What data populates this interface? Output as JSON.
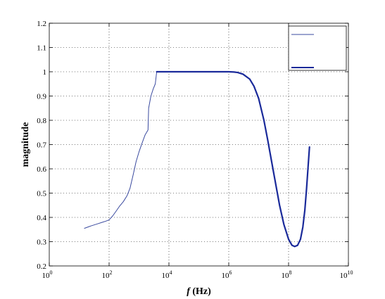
{
  "chart_data": {
    "type": "line",
    "title": "",
    "xlabel_italic": "f",
    "xlabel_rest": " (Hz)",
    "ylabel": "magnitude",
    "xscale": "log",
    "xlim": [
      1,
      10000000000
    ],
    "ylim": [
      0.2,
      1.2
    ],
    "grid": true,
    "legend_placement": "top-right",
    "x_ticks": [
      {
        "value": 1,
        "base": "10",
        "exp": "0"
      },
      {
        "value": 100,
        "base": "10",
        "exp": "2"
      },
      {
        "value": 10000,
        "base": "10",
        "exp": "4"
      },
      {
        "value": 1000000,
        "base": "10",
        "exp": "6"
      },
      {
        "value": 100000000,
        "base": "10",
        "exp": "8"
      },
      {
        "value": 10000000000,
        "base": "10",
        "exp": "10"
      }
    ],
    "y_ticks": [
      {
        "value": 0.2,
        "label": "0.2"
      },
      {
        "value": 0.3,
        "label": "0.3"
      },
      {
        "value": 0.4,
        "label": "0.4"
      },
      {
        "value": 0.5,
        "label": "0.5"
      },
      {
        "value": 0.6,
        "label": "0.6"
      },
      {
        "value": 0.7,
        "label": "0.7"
      },
      {
        "value": 0.8,
        "label": "0.8"
      },
      {
        "value": 0.9,
        "label": "0.9"
      },
      {
        "value": 1,
        "label": "1"
      },
      {
        "value": 1.1,
        "label": "1.1"
      },
      {
        "value": 1.2,
        "label": "1.2"
      }
    ],
    "series": [
      {
        "color": "#3a4a9f",
        "line_width": "thin",
        "x": [
          15,
          25,
          40,
          60,
          80,
          100,
          130,
          170,
          220,
          300,
          400,
          500,
          650,
          800,
          1000,
          1300,
          1600,
          2000,
          2100,
          2500,
          3000,
          3500,
          3900
        ],
        "y": [
          0.355,
          0.365,
          0.373,
          0.38,
          0.385,
          0.39,
          0.405,
          0.425,
          0.445,
          0.465,
          0.49,
          0.52,
          0.58,
          0.63,
          0.67,
          0.71,
          0.74,
          0.76,
          0.85,
          0.9,
          0.93,
          0.95,
          1.0
        ]
      },
      {
        "color": "#1a2a9a",
        "line_width": "thick",
        "x": [
          3900,
          10000,
          100000,
          1000000,
          1500000,
          2000000,
          3000000,
          5000000,
          7000000,
          10000000,
          15000000,
          20000000,
          30000000,
          50000000,
          70000000,
          100000000,
          130000000,
          160000000,
          200000000,
          250000000,
          300000000,
          350000000,
          400000000,
          450000000,
          500000000
        ],
        "y": [
          1.0,
          1.0,
          1.0,
          1.0,
          0.999,
          0.997,
          0.99,
          0.97,
          0.94,
          0.89,
          0.8,
          0.72,
          0.6,
          0.45,
          0.37,
          0.31,
          0.285,
          0.28,
          0.285,
          0.31,
          0.36,
          0.43,
          0.52,
          0.61,
          0.69
        ]
      }
    ]
  }
}
